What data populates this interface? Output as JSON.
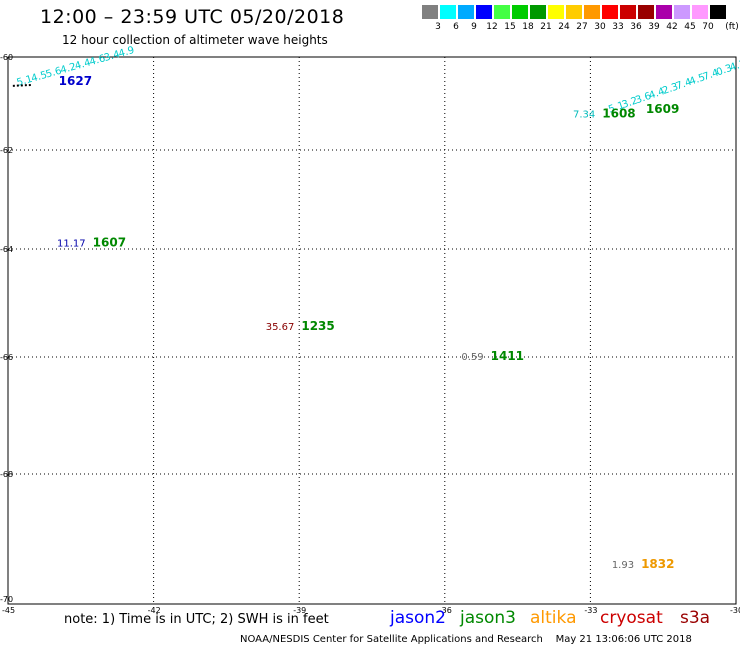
{
  "header": {
    "title": "12:00 – 23:59 UTC 05/20/2018",
    "subtitle": "12 hour collection of altimeter wave heights"
  },
  "legend": {
    "unit": "(ft)",
    "swatches": [
      {
        "color": "#808080",
        "label": "3"
      },
      {
        "color": "#00ffff",
        "label": "6"
      },
      {
        "color": "#00aaff",
        "label": "9"
      },
      {
        "color": "#0000ff",
        "label": "12"
      },
      {
        "color": "#44ff44",
        "label": "15"
      },
      {
        "color": "#00cc00",
        "label": "18"
      },
      {
        "color": "#009900",
        "label": "21"
      },
      {
        "color": "#ffff00",
        "label": "24"
      },
      {
        "color": "#ffcc00",
        "label": "27"
      },
      {
        "color": "#ff9900",
        "label": "30"
      },
      {
        "color": "#ff0000",
        "label": "33"
      },
      {
        "color": "#cc0000",
        "label": "36"
      },
      {
        "color": "#990000",
        "label": "39"
      },
      {
        "color": "#aa00aa",
        "label": "42"
      },
      {
        "color": "#cc99ff",
        "label": "45"
      },
      {
        "color": "#ff99ff",
        "label": "70"
      },
      {
        "color": "#000000",
        "label": ""
      }
    ]
  },
  "axes": {
    "lat_ticks": [
      "-60",
      "-62",
      "-64",
      "-66",
      "-68",
      "-70"
    ],
    "lon_ticks": [
      "-45",
      "-42",
      "-39",
      "-36",
      "-33",
      "-30"
    ]
  },
  "observations": [
    {
      "value": "11.17",
      "time": "1607",
      "value_color": "#0000aa",
      "time_color": "#008800",
      "lon": -43.4,
      "lat": -63.95
    },
    {
      "value": "35.67",
      "time": "1235",
      "value_color": "#880000",
      "time_color": "#008800",
      "lon": -39.1,
      "lat": -65.5
    },
    {
      "value": "0.59",
      "time": "1411",
      "value_color": "#666666",
      "time_color": "#008800",
      "lon": -35.2,
      "lat": -66.05
    },
    {
      "value": "1.93",
      "time": "1832",
      "value_color": "#666666",
      "time_color": "#ee9900",
      "lon": -32.1,
      "lat": -69.5
    },
    {
      "value": "",
      "time": "1627",
      "value_color": "#000000",
      "time_color": "#0000cc",
      "lon": -44.1,
      "lat": -60.6
    },
    {
      "value": "7.34",
      "time": "1608",
      "value_color": "#00bbbb",
      "time_color": "#008800",
      "lon": -32.9,
      "lat": -61.3
    },
    {
      "value": "",
      "time": "1609",
      "value_color": "#00bbbb",
      "time_color": "#008800",
      "lon": -32.0,
      "lat": -61.2
    }
  ],
  "tracks": [
    {
      "color": "#00cccc",
      "labels": [
        "5.1",
        "4.5",
        "5.6",
        "4.2",
        "4.4",
        "4.6",
        "3.4",
        "4.9"
      ],
      "start": [
        -44.8,
        -60.62
      ],
      "end": [
        -42.7,
        -60.0
      ]
    },
    {
      "color": "#00cccc",
      "labels": [
        "5.1",
        "3.2",
        "3.6",
        "4.4",
        "2.3",
        "7.4",
        "4.5",
        "7.4",
        "0.3",
        "4.1"
      ],
      "start": [
        -32.6,
        -61.2
      ],
      "end": [
        -30.1,
        -60.3
      ]
    }
  ],
  "satellites": [
    {
      "name": "jason2",
      "color": "#0000ff"
    },
    {
      "name": "jason3",
      "color": "#008800"
    },
    {
      "name": "altika",
      "color": "#ff9900"
    },
    {
      "name": "cryosat",
      "color": "#cc0000"
    },
    {
      "name": "s3a",
      "color": "#990000"
    }
  ],
  "footer": {
    "note": "note: 1) Time is in UTC; 2) SWH is in feet",
    "credit": "NOAA/NESDIS Center for Satellite Applications and Research    May 21 13:06:06 UTC 2018"
  }
}
